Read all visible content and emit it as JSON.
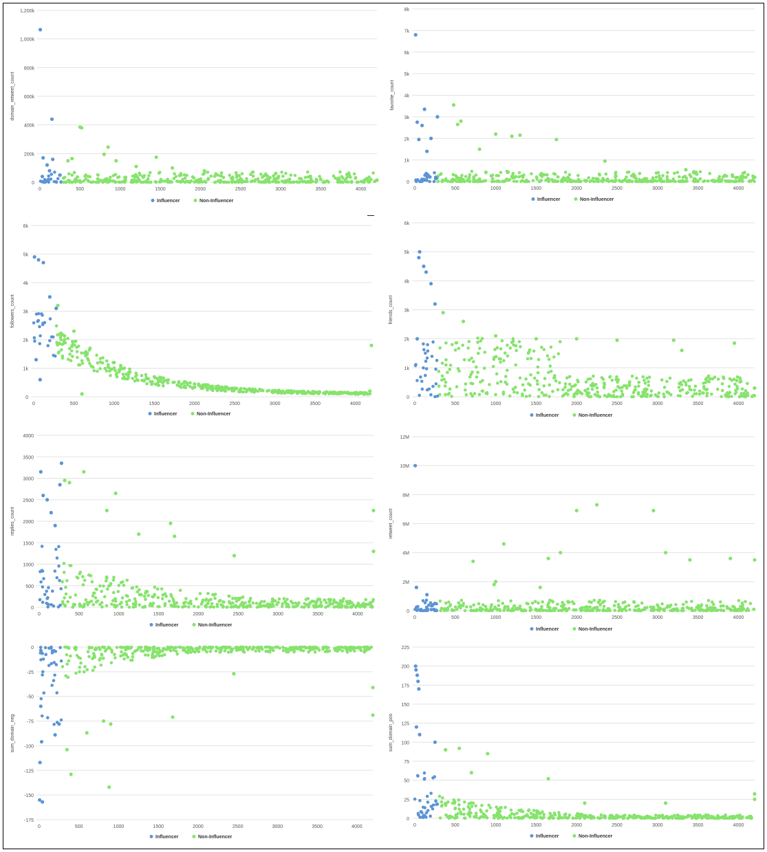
{
  "colors": {
    "influencer": "#5b94d4",
    "non_influencer": "#86e36c",
    "grid": "#e3e3e3",
    "tick_text": "#555555"
  },
  "chart_data": [
    {
      "type": "scatter",
      "xlabel": "",
      "ylabel": "domain_retweet_count",
      "xlim": [
        0,
        4200
      ],
      "ylim": [
        0,
        1200000
      ],
      "x_ticks": [
        0,
        500,
        1000,
        1500,
        2000,
        2500,
        3000,
        3500,
        4000
      ],
      "y_ticks": [
        0,
        200000,
        400000,
        600000,
        800000,
        1000000,
        1200000
      ],
      "y_tick_labels": [
        "0",
        "200k",
        "400k",
        "600k",
        "800k",
        "1,000k",
        "1,200k"
      ],
      "legend": [
        "Influencer",
        "Non-Influencer"
      ],
      "legend_position": "bottom",
      "series": [
        {
          "name": "Influencer",
          "x": [
            5,
            40,
            90,
            150,
            160,
            120,
            30,
            250
          ],
          "y": [
            1065000,
            170000,
            120000,
            440000,
            160000,
            80000,
            40000,
            50000
          ]
        },
        {
          "name": "Non-Influencer",
          "x": [
            500,
            520,
            850,
            1450,
            800,
            400,
            350,
            950,
            1200,
            1650,
            2050,
            3500,
            4200
          ],
          "y": [
            385000,
            380000,
            245000,
            175000,
            195000,
            165000,
            150000,
            150000,
            110000,
            100000,
            80000,
            20000,
            15000
          ]
        }
      ]
    },
    {
      "type": "scatter",
      "xlabel": "",
      "ylabel": "favorite_count",
      "xlim": [
        0,
        4200
      ],
      "ylim": [
        0,
        8000
      ],
      "x_ticks": [
        0,
        500,
        1000,
        1500,
        2000,
        2500,
        3000,
        3500,
        4000
      ],
      "y_ticks": [
        0,
        1000,
        2000,
        3000,
        4000,
        5000,
        6000,
        7000,
        8000
      ],
      "y_tick_labels": [
        "0",
        "1k",
        "2k",
        "3k",
        "4k",
        "5k",
        "6k",
        "7k",
        "8k"
      ],
      "legend": [
        "Influencer",
        "Non-Influencer"
      ],
      "legend_position": "bottom",
      "series": [
        {
          "name": "Influencer",
          "x": [
            10,
            120,
            30,
            280,
            90,
            50,
            200,
            150
          ],
          "y": [
            6800,
            3350,
            2750,
            3000,
            2600,
            1950,
            2000,
            1400
          ]
        },
        {
          "name": "Non-Influencer",
          "x": [
            480,
            570,
            530,
            1300,
            1750,
            1200,
            1000,
            800,
            2350,
            3350,
            4200
          ],
          "y": [
            3550,
            2800,
            2650,
            2150,
            1950,
            2100,
            2200,
            1500,
            950,
            550,
            200
          ]
        }
      ]
    },
    {
      "type": "scatter",
      "xlabel": "",
      "ylabel": "followers_count",
      "xlim": [
        0,
        4200
      ],
      "ylim": [
        0,
        6000
      ],
      "x_ticks": [
        0,
        500,
        1000,
        1500,
        2000,
        2500,
        3000,
        3500,
        4000
      ],
      "y_ticks": [
        0,
        1000,
        2000,
        3000,
        4000,
        5000,
        6000
      ],
      "y_tick_labels": [
        "0",
        "1k",
        "2k",
        "3k",
        "4k",
        "5k",
        "6k"
      ],
      "legend": [
        "Influencer",
        "Non-Influencer"
      ],
      "legend_position": "bottom",
      "series": [
        {
          "name": "Influencer",
          "x": [
            10,
            60,
            120,
            30,
            200,
            280,
            80
          ],
          "y": [
            4900,
            4800,
            4700,
            1300,
            3500,
            3100,
            600
          ]
        },
        {
          "name": "Non-Influencer",
          "x": [
            300,
            500,
            700,
            1000,
            1500,
            2000,
            2500,
            3000,
            3500,
            4000,
            4200,
            4180,
            600
          ],
          "y": [
            3200,
            2300,
            1700,
            1200,
            700,
            450,
            300,
            200,
            150,
            100,
            1800,
            200,
            100
          ]
        }
      ]
    },
    {
      "type": "scatter",
      "xlabel": "",
      "ylabel": "friends_count",
      "xlim": [
        0,
        4200
      ],
      "ylim": [
        0,
        6000
      ],
      "x_ticks": [
        0,
        500,
        1000,
        1500,
        2000,
        2500,
        3000,
        3500,
        4000
      ],
      "y_ticks": [
        0,
        1000,
        2000,
        3000,
        4000,
        5000,
        6000
      ],
      "y_tick_labels": [
        "0",
        "1k",
        "2k",
        "3k",
        "4k",
        "5k",
        "6k"
      ],
      "legend": [
        "Influencer",
        "Non-Influencer"
      ],
      "legend_position": "bottom",
      "series": [
        {
          "name": "Influencer",
          "x": [
            50,
            60,
            110,
            140,
            200,
            250,
            30
          ],
          "y": [
            4800,
            5000,
            4500,
            4300,
            3900,
            3200,
            2000
          ]
        },
        {
          "name": "Non-Influencer",
          "x": [
            350,
            600,
            1000,
            1500,
            2000,
            2500,
            3200,
            3950,
            4200,
            3300
          ],
          "y": [
            2900,
            2600,
            2100,
            2000,
            2000,
            1950,
            1950,
            1850,
            300,
            1600
          ]
        }
      ]
    },
    {
      "type": "scatter",
      "xlabel": "",
      "ylabel": "replies_count",
      "xlim": [
        0,
        4200
      ],
      "ylim": [
        0,
        4000
      ],
      "x_ticks": [
        0,
        500,
        1000,
        1500,
        2000,
        2500,
        3000,
        3500,
        4000
      ],
      "y_ticks": [
        0,
        500,
        1000,
        1500,
        2000,
        2500,
        3000,
        3500,
        4000
      ],
      "y_tick_labels": [
        "0",
        "500",
        "1000",
        "1500",
        "2000",
        "2500",
        "3000",
        "3500",
        "4000"
      ],
      "legend": [
        "Influencer",
        "Non-Influencer"
      ],
      "legend_position": "bottom",
      "series": [
        {
          "name": "Influencer",
          "x": [
            20,
            280,
            260,
            50,
            100,
            150,
            200
          ],
          "y": [
            3150,
            3350,
            2850,
            2600,
            2500,
            2200,
            1900
          ]
        },
        {
          "name": "Non-Influencer",
          "x": [
            320,
            380,
            560,
            960,
            1650,
            1700,
            2450,
            4200,
            4200,
            850,
            1250
          ],
          "y": [
            2950,
            2900,
            3150,
            2650,
            1950,
            1650,
            1200,
            2250,
            1300,
            2250,
            1700
          ]
        }
      ]
    },
    {
      "type": "scatter",
      "xlabel": "",
      "ylabel": "retweet_count",
      "xlim": [
        0,
        4200
      ],
      "ylim": [
        0,
        12000000
      ],
      "x_ticks": [
        0,
        500,
        1000,
        1500,
        2000,
        2500,
        3000,
        3500,
        4000
      ],
      "y_ticks": [
        0,
        2000000,
        4000000,
        6000000,
        8000000,
        10000000,
        12000000
      ],
      "y_tick_labels": [
        "0",
        "2M",
        "4M",
        "6M",
        "8M",
        "10M",
        "12M"
      ],
      "legend": [
        "Influencer",
        "Non-Influencer"
      ],
      "legend_position": "bottom",
      "series": [
        {
          "name": "Influencer",
          "x": [
            5,
            20,
            150,
            250
          ],
          "y": [
            10000000,
            1600000,
            1100000,
            500000
          ]
        },
        {
          "name": "Non-Influencer",
          "x": [
            2250,
            2000,
            2950,
            1100,
            3100,
            720,
            1000,
            980,
            1650,
            1800,
            1550,
            3400,
            3900,
            4200
          ],
          "y": [
            7300000,
            6900000,
            6900000,
            4600000,
            4000000,
            3400000,
            2000000,
            1800000,
            3600000,
            4000000,
            1600000,
            3500000,
            3600000,
            3500000
          ]
        }
      ]
    },
    {
      "type": "scatter",
      "xlabel": "",
      "ylabel": "sum_domain_neg",
      "xlim": [
        0,
        4200
      ],
      "ylim": [
        -175,
        0
      ],
      "x_ticks": [
        0,
        500,
        1000,
        1500,
        2000,
        2500,
        3000,
        3500,
        4000
      ],
      "y_ticks": [
        0,
        -25,
        -50,
        -75,
        -100,
        -125,
        -150,
        -175
      ],
      "y_tick_labels": [
        "0",
        "-25",
        "-50",
        "-75",
        "-100",
        "-125",
        "-150",
        "-175"
      ],
      "legend": [
        "Influencer",
        "Non-Influencer"
      ],
      "legend_position": "bottom",
      "series": [
        {
          "name": "Influencer",
          "x": [
            5,
            10,
            40,
            30,
            200,
            250,
            20
          ],
          "y": [
            -155,
            -117,
            -157,
            -96,
            -89,
            -78,
            -60
          ]
        },
        {
          "name": "Non-Influencer",
          "x": [
            880,
            400,
            350,
            810,
            1680,
            4200,
            4200,
            600,
            900,
            2450
          ],
          "y": [
            -142,
            -129,
            -104,
            -75,
            -71,
            -69,
            -41,
            -87,
            -78,
            -27
          ]
        }
      ]
    },
    {
      "type": "scatter",
      "xlabel": "",
      "ylabel": "sum_domain_pos",
      "xlim": [
        0,
        4200
      ],
      "ylim": [
        0,
        225
      ],
      "x_ticks": [
        0,
        500,
        1000,
        1500,
        2000,
        2500,
        3000,
        3500,
        4000
      ],
      "y_ticks": [
        0,
        25,
        50,
        75,
        100,
        125,
        150,
        175,
        200,
        225
      ],
      "y_tick_labels": [
        "0",
        "25",
        "50",
        "75",
        "100",
        "125",
        "150",
        "175",
        "200",
        "225"
      ],
      "legend": [
        "Influencer",
        "Non-Influencer"
      ],
      "legend_position": "bottom",
      "series": [
        {
          "name": "Influencer",
          "x": [
            10,
            15,
            30,
            40,
            50,
            20,
            250,
            60
          ],
          "y": [
            200,
            195,
            188,
            180,
            170,
            120,
            100,
            110
          ]
        },
        {
          "name": "Non-Influencer",
          "x": [
            380,
            550,
            900,
            1650,
            3100,
            4200,
            4200,
            700,
            2100
          ],
          "y": [
            90,
            92,
            85,
            52,
            20,
            32,
            25,
            60,
            20
          ]
        }
      ]
    }
  ]
}
